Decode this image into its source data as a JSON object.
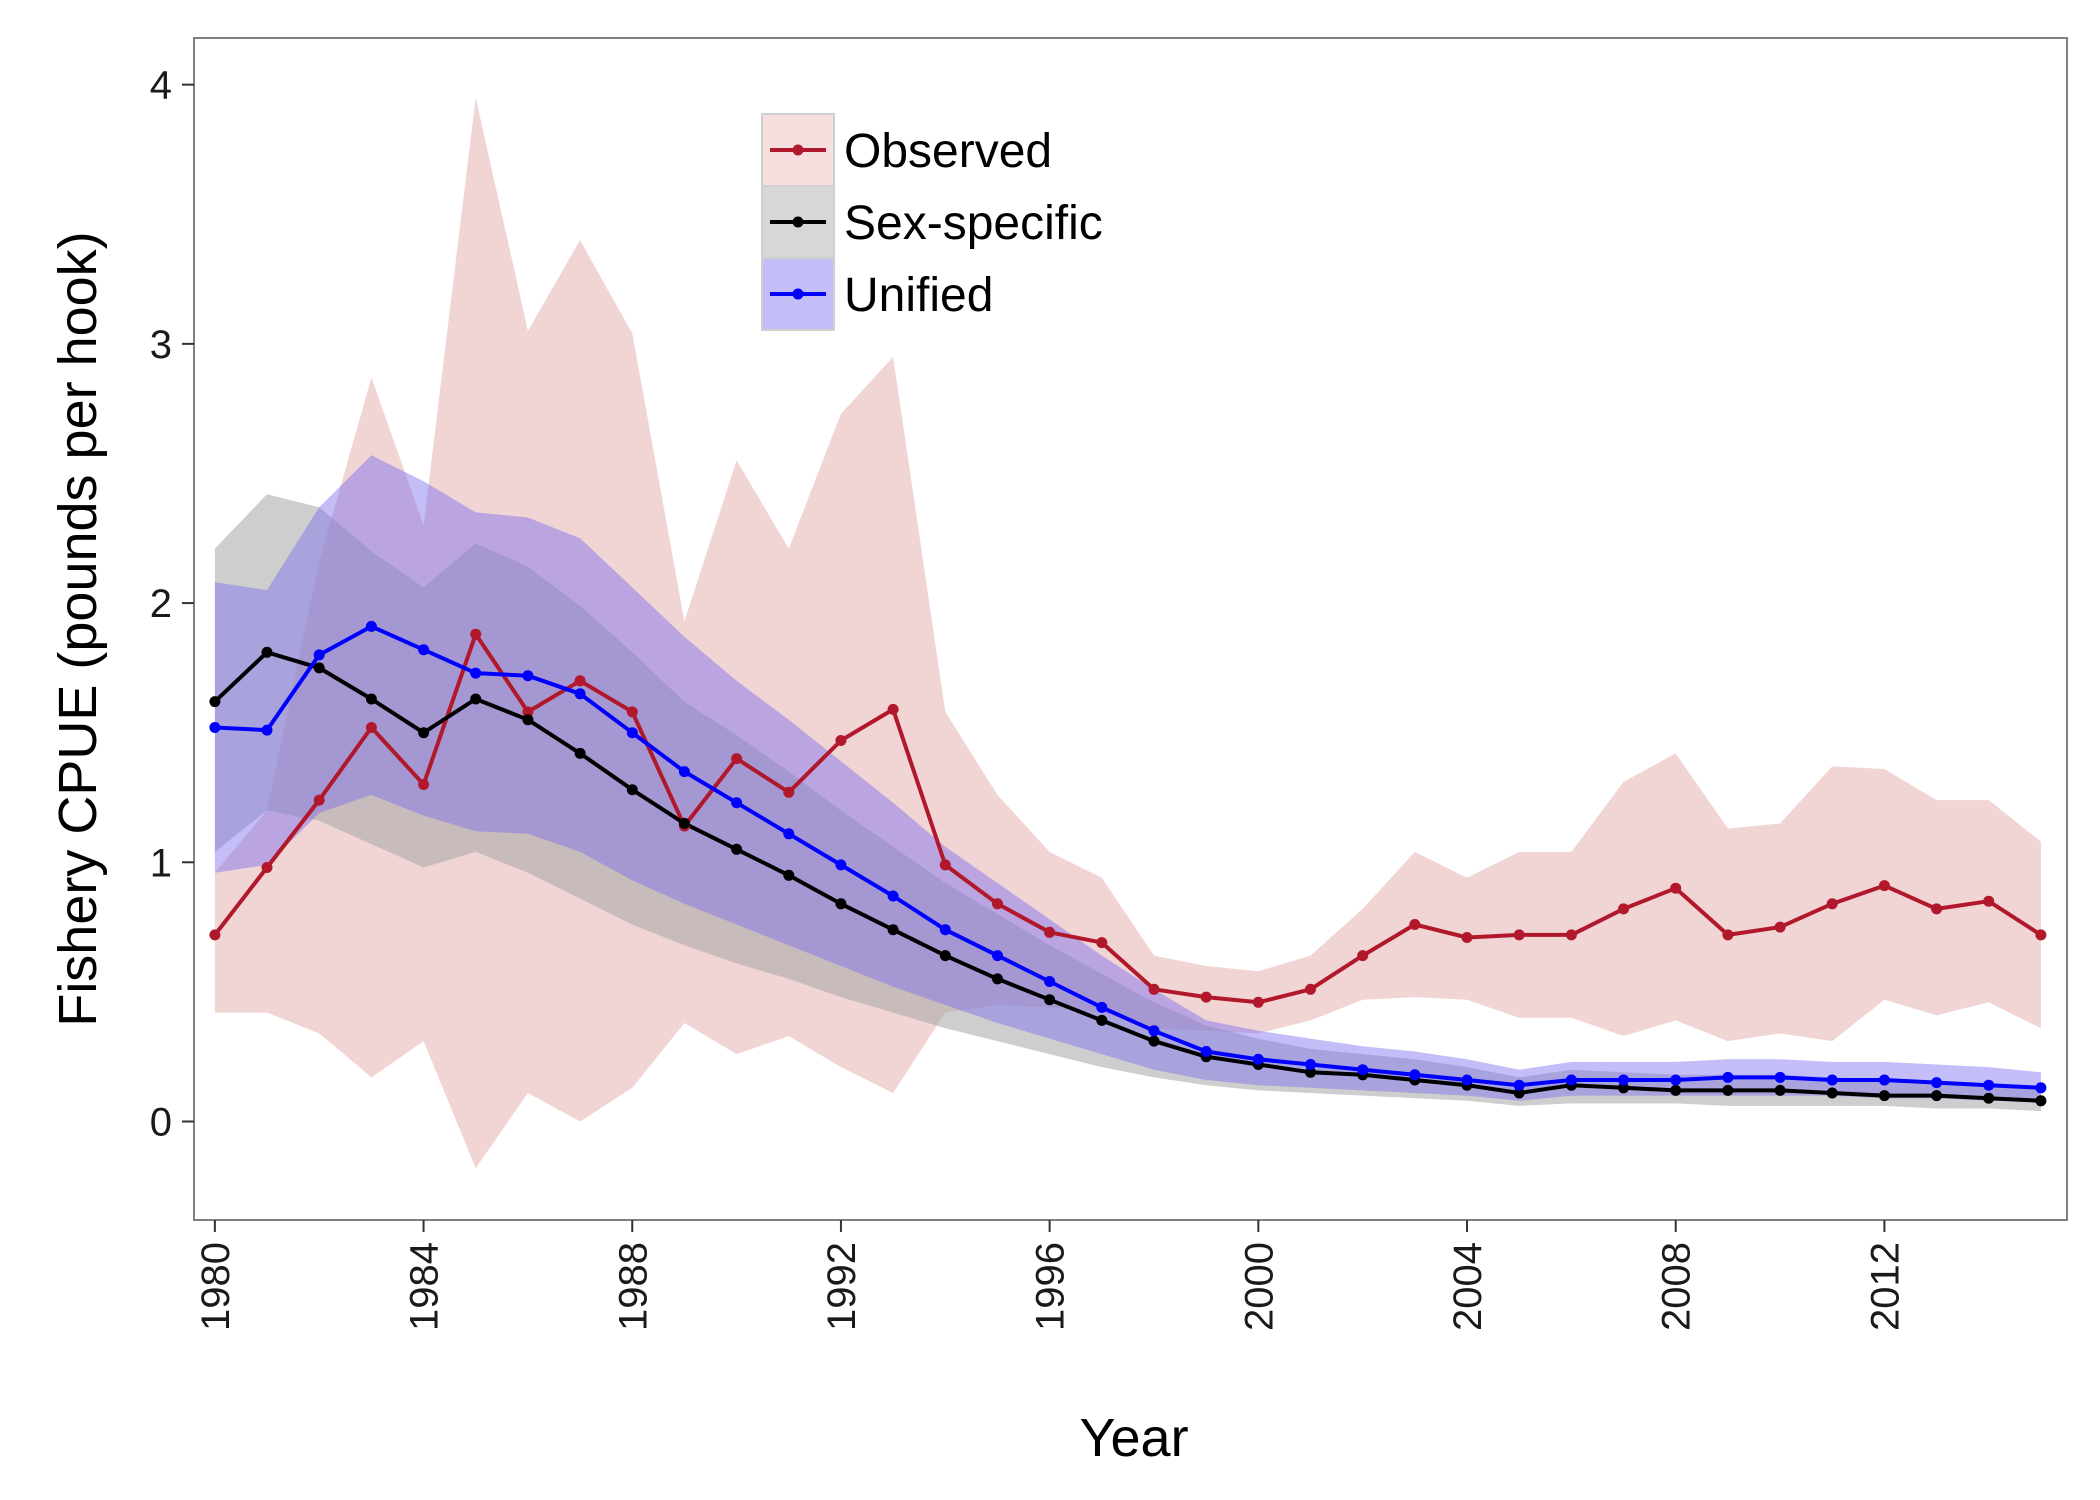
{
  "chart_data": {
    "type": "line",
    "xlabel": "Year",
    "ylabel": "Fishery CPUE (pounds per hook)",
    "xlim": [
      1979.6,
      2015.5
    ],
    "ylim": [
      -0.38,
      4.18
    ],
    "x_ticks": [
      1980,
      1984,
      1988,
      1992,
      1996,
      2000,
      2004,
      2008,
      2012
    ],
    "y_ticks": [
      0,
      1,
      2,
      3,
      4
    ],
    "grid": false,
    "legend_position": "top-center",
    "x": [
      1980,
      1981,
      1982,
      1983,
      1984,
      1985,
      1986,
      1987,
      1988,
      1989,
      1990,
      1991,
      1992,
      1993,
      1994,
      1995,
      1996,
      1997,
      1998,
      1999,
      2000,
      2001,
      2002,
      2003,
      2004,
      2005,
      2006,
      2007,
      2008,
      2009,
      2010,
      2011,
      2012,
      2013,
      2014,
      2015
    ],
    "series": [
      {
        "name": "Observed",
        "color": "#b2182b",
        "band_color": "#e8b7b7",
        "values": [
          0.72,
          0.98,
          1.24,
          1.52,
          1.3,
          1.88,
          1.58,
          1.7,
          1.58,
          1.14,
          1.4,
          1.27,
          1.47,
          1.59,
          0.99,
          0.84,
          0.73,
          0.69,
          0.51,
          0.48,
          0.46,
          0.51,
          0.64,
          0.76,
          0.71,
          0.72,
          0.72,
          0.82,
          0.9,
          0.72,
          0.75,
          0.84,
          0.91,
          0.82,
          0.85,
          0.72
        ],
        "lower": [
          0.42,
          0.42,
          0.34,
          0.17,
          0.31,
          -0.18,
          0.11,
          0.0,
          0.13,
          0.38,
          0.26,
          0.33,
          0.21,
          0.11,
          0.42,
          0.45,
          0.44,
          0.42,
          0.36,
          0.35,
          0.34,
          0.39,
          0.47,
          0.48,
          0.47,
          0.4,
          0.4,
          0.33,
          0.39,
          0.31,
          0.34,
          0.31,
          0.47,
          0.41,
          0.46,
          0.36
        ],
        "upper": [
          0.96,
          1.2,
          2.16,
          2.87,
          2.3,
          3.95,
          3.05,
          3.4,
          3.04,
          1.93,
          2.55,
          2.21,
          2.73,
          2.95,
          1.58,
          1.26,
          1.04,
          0.94,
          0.64,
          0.6,
          0.58,
          0.64,
          0.82,
          1.04,
          0.94,
          1.04,
          1.04,
          1.31,
          1.42,
          1.13,
          1.15,
          1.37,
          1.36,
          1.24,
          1.24,
          1.08
        ]
      },
      {
        "name": "Sex-specific",
        "color": "#000000",
        "band_color": "#a6a6a6",
        "values": [
          1.62,
          1.81,
          1.75,
          1.63,
          1.5,
          1.63,
          1.55,
          1.42,
          1.28,
          1.15,
          1.05,
          0.95,
          0.84,
          0.74,
          0.64,
          0.55,
          0.47,
          0.39,
          0.31,
          0.25,
          0.22,
          0.19,
          0.18,
          0.16,
          0.14,
          0.11,
          0.14,
          0.13,
          0.12,
          0.12,
          0.12,
          0.11,
          0.1,
          0.1,
          0.09,
          0.08
        ],
        "lower": [
          1.04,
          1.2,
          1.16,
          1.07,
          0.98,
          1.04,
          0.96,
          0.86,
          0.76,
          0.68,
          0.61,
          0.55,
          0.48,
          0.42,
          0.36,
          0.31,
          0.26,
          0.21,
          0.17,
          0.14,
          0.12,
          0.11,
          0.1,
          0.09,
          0.08,
          0.06,
          0.07,
          0.07,
          0.07,
          0.06,
          0.06,
          0.06,
          0.06,
          0.05,
          0.05,
          0.04
        ],
        "upper": [
          2.21,
          2.42,
          2.37,
          2.2,
          2.06,
          2.23,
          2.14,
          1.99,
          1.81,
          1.62,
          1.49,
          1.35,
          1.2,
          1.06,
          0.92,
          0.8,
          0.68,
          0.57,
          0.46,
          0.37,
          0.32,
          0.28,
          0.26,
          0.24,
          0.21,
          0.17,
          0.2,
          0.19,
          0.18,
          0.18,
          0.18,
          0.17,
          0.16,
          0.15,
          0.14,
          0.13
        ]
      },
      {
        "name": "Unified",
        "color": "#0000ff",
        "band_color": "#7b6cf0",
        "values": [
          1.52,
          1.51,
          1.8,
          1.91,
          1.82,
          1.73,
          1.72,
          1.65,
          1.5,
          1.35,
          1.23,
          1.11,
          0.99,
          0.87,
          0.74,
          0.64,
          0.54,
          0.44,
          0.35,
          0.27,
          0.24,
          0.22,
          0.2,
          0.18,
          0.16,
          0.14,
          0.16,
          0.16,
          0.16,
          0.17,
          0.17,
          0.16,
          0.16,
          0.15,
          0.14,
          0.13
        ],
        "lower": [
          0.96,
          0.99,
          1.19,
          1.26,
          1.18,
          1.12,
          1.11,
          1.04,
          0.93,
          0.84,
          0.76,
          0.68,
          0.6,
          0.52,
          0.45,
          0.38,
          0.32,
          0.26,
          0.2,
          0.16,
          0.14,
          0.13,
          0.12,
          0.11,
          0.1,
          0.08,
          0.1,
          0.1,
          0.1,
          0.1,
          0.1,
          0.1,
          0.09,
          0.09,
          0.08,
          0.08
        ],
        "upper": [
          2.08,
          2.05,
          2.37,
          2.57,
          2.47,
          2.35,
          2.33,
          2.25,
          2.06,
          1.87,
          1.7,
          1.55,
          1.39,
          1.23,
          1.06,
          0.92,
          0.78,
          0.64,
          0.51,
          0.39,
          0.35,
          0.32,
          0.29,
          0.27,
          0.24,
          0.2,
          0.23,
          0.23,
          0.23,
          0.24,
          0.24,
          0.23,
          0.23,
          0.22,
          0.21,
          0.19
        ]
      }
    ]
  }
}
